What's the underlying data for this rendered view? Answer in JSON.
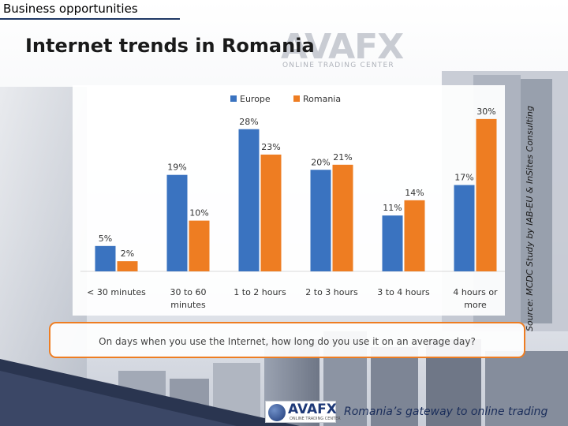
{
  "header": {
    "section_label": "Business opportunities",
    "title": "Internet trends in Romania"
  },
  "logo": {
    "main": "AVAFX",
    "sub": "ONLINE TRADING CENTER"
  },
  "source_note": "Source: MCDC Study by IAB-EU & InSites Consulting",
  "question": "On days when you use the Internet, how long do you use it on an average day?",
  "footer": {
    "logo_main": "AVAFX",
    "logo_sub": "ONLINE TRADING CENTER",
    "tagline": "Romania’s gateway to online trading"
  },
  "colors": {
    "europe": "#3a73c0",
    "romania": "#ee7d22",
    "box_border": "#ee7d22"
  },
  "chart_data": {
    "type": "bar",
    "title": "",
    "xlabel": "",
    "ylabel": "",
    "ylim": [
      0,
      32
    ],
    "grid": false,
    "legend_position": "top",
    "categories": [
      [
        "< 30 minutes"
      ],
      [
        "30 to 60",
        "minutes"
      ],
      [
        "1 to 2 hours"
      ],
      [
        "2 to 3 hours"
      ],
      [
        "3 to 4 hours"
      ],
      [
        "4 hours or",
        "more"
      ]
    ],
    "series": [
      {
        "name": "Europe",
        "color": "#3a73c0",
        "values": [
          5,
          19,
          28,
          20,
          11,
          17
        ],
        "labels": [
          "5%",
          "19%",
          "28%",
          "20%",
          "11%",
          "17%"
        ]
      },
      {
        "name": "Romania",
        "color": "#ee7d22",
        "values": [
          2,
          10,
          23,
          21,
          14,
          30
        ],
        "labels": [
          "2%",
          "10%",
          "23%",
          "21%",
          "14%",
          "30%"
        ]
      }
    ]
  }
}
